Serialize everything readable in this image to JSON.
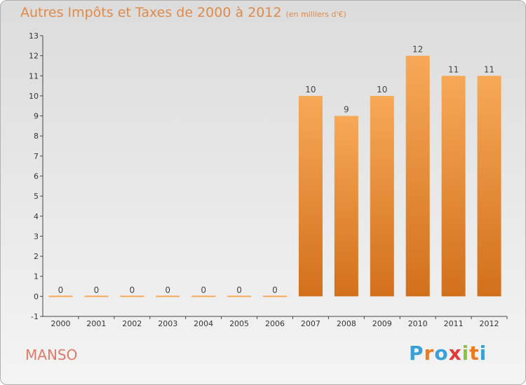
{
  "title": "Autres Impôts et Taxes de 2000 à 2012",
  "title_unit": "(en milliers d'€)",
  "commune": "MANSO",
  "brand": "Proxiti",
  "brand_colors": [
    "#3aa0d8",
    "#f07a20",
    "#3aa0d8",
    "#e23a3a",
    "#8ac43a",
    "#f07a20",
    "#3aa0d8"
  ],
  "colors": {
    "bar_light": "#f7a957",
    "bar_dark": "#d2701c",
    "title": "#e08a4a",
    "commune": "#e07a6a"
  },
  "chart_data": {
    "type": "bar",
    "categories": [
      "2000",
      "2001",
      "2002",
      "2003",
      "2004",
      "2005",
      "2006",
      "2007",
      "2008",
      "2009",
      "2010",
      "2011",
      "2012"
    ],
    "values": [
      0,
      0,
      0,
      0,
      0,
      0,
      0,
      10,
      9,
      10,
      12,
      11,
      11
    ],
    "title": "Autres Impôts et Taxes de 2000 à 2012",
    "xlabel": "",
    "ylabel": "",
    "ylim": [
      -1,
      13
    ],
    "yticks": [
      -1,
      0,
      1,
      2,
      3,
      4,
      5,
      6,
      7,
      8,
      9,
      10,
      11,
      12,
      13
    ],
    "grid": false,
    "legend": "none"
  }
}
